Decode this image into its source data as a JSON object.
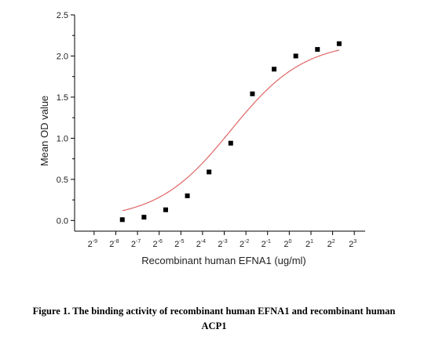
{
  "chart_data": {
    "type": "scatter",
    "xlabel": "Recombinant human  EFNA1 (ug/ml)",
    "ylabel": "Mean OD value",
    "x_scale": "log2",
    "x_ticks": [
      {
        "base": "2",
        "exp": "-9"
      },
      {
        "base": "2",
        "exp": "-8"
      },
      {
        "base": "2",
        "exp": "-7"
      },
      {
        "base": "2",
        "exp": "-6"
      },
      {
        "base": "2",
        "exp": "-5"
      },
      {
        "base": "2",
        "exp": "-4"
      },
      {
        "base": "2",
        "exp": "-3"
      },
      {
        "base": "2",
        "exp": "-2"
      },
      {
        "base": "2",
        "exp": "-1"
      },
      {
        "base": "2",
        "exp": "0"
      },
      {
        "base": "2",
        "exp": "1"
      },
      {
        "base": "2",
        "exp": "2"
      },
      {
        "base": "2",
        "exp": "3"
      }
    ],
    "y_ticks": [
      "0.0",
      "0.5",
      "1.0",
      "1.5",
      "2.0",
      "2.5"
    ],
    "xlim_log2": [
      -9.9,
      3.5
    ],
    "ylim": [
      -0.13,
      2.5
    ],
    "points": [
      {
        "log2_x": -7.7,
        "y": 0.01
      },
      {
        "log2_x": -6.7,
        "y": 0.04
      },
      {
        "log2_x": -5.7,
        "y": 0.13
      },
      {
        "log2_x": -4.7,
        "y": 0.3
      },
      {
        "log2_x": -3.7,
        "y": 0.59
      },
      {
        "log2_x": -2.7,
        "y": 0.94
      },
      {
        "log2_x": -1.7,
        "y": 1.54
      },
      {
        "log2_x": -0.7,
        "y": 1.84
      },
      {
        "log2_x": 0.3,
        "y": 2.0
      },
      {
        "log2_x": 1.3,
        "y": 2.08
      },
      {
        "log2_x": 2.3,
        "y": 2.15
      }
    ],
    "fit_curve": {
      "model": "4PL",
      "bottom": 0.01,
      "top": 2.18,
      "ec50_log2": -2.7,
      "hill": 0.85,
      "x_range_log2": [
        -7.7,
        2.3
      ]
    },
    "colors": {
      "points": "#000000",
      "curve": "#e06666",
      "axis": "#000000"
    }
  },
  "caption": {
    "line1": "Figure 1. The binding activity of recombinant human EFNA1 and recombinant human",
    "line2": "ACP1"
  }
}
